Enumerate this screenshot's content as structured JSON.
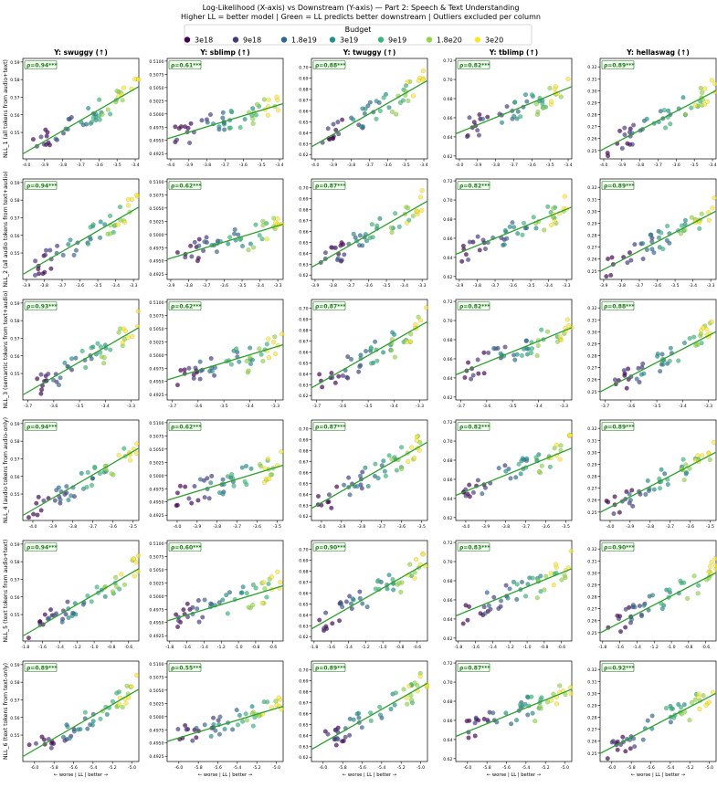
{
  "figure": {
    "title_line1": "Log-Likelihood (X-axis) vs Downstream (Y-axis) — Part 2: Speech & Text Understanding",
    "title_line2": "Higher LL = better model | Green = LL predicts better downstream | Outliers excluded per column",
    "legend_title": "Budget",
    "legend": [
      {
        "label": "3e18",
        "color": "#440154"
      },
      {
        "label": "9e18",
        "color": "#443983"
      },
      {
        "label": "1.8e19",
        "color": "#31688e"
      },
      {
        "label": "3e19",
        "color": "#21918c"
      },
      {
        "label": "9e19",
        "color": "#35b779"
      },
      {
        "label": "1.8e20",
        "color": "#90d743"
      },
      {
        "label": "3e20",
        "color": "#fde725"
      }
    ],
    "x_footer": "← worse | LL | better →",
    "fit_color": "#2ca02c",
    "rho_text_color": "#1a7a1a"
  },
  "columns": [
    {
      "title": "Y: swuggy (↑)",
      "ylim": [
        0.535,
        0.592
      ],
      "yticks": [
        "0.55",
        "0.56",
        "0.57",
        "0.58",
        "0.59"
      ]
    },
    {
      "title": "Y: sblimp (↑)",
      "ylim": [
        0.4915,
        0.5105
      ],
      "yticks": [
        "0.4925",
        "0.4950",
        "0.4975",
        "0.5000",
        "0.5025",
        "0.5050",
        "0.5075",
        "0.5100"
      ]
    },
    {
      "title": "Y: twuggy (↑)",
      "ylim": [
        0.616,
        0.708
      ],
      "yticks": [
        "0.62",
        "0.63",
        "0.64",
        "0.65",
        "0.66",
        "0.67",
        "0.68",
        "0.69",
        "0.70"
      ]
    },
    {
      "title": "Y: tblimp (↑)",
      "ylim": [
        0.617,
        0.722
      ],
      "yticks": [
        "0.62",
        "0.64",
        "0.66",
        "0.68",
        "0.70",
        "0.72"
      ]
    },
    {
      "title": "Y: hellaswag (↑)",
      "ylim": [
        0.243,
        0.327
      ],
      "yticks": [
        "0.25",
        "0.26",
        "0.27",
        "0.28",
        "0.29",
        "0.30",
        "0.31",
        "0.32"
      ]
    }
  ],
  "rows": [
    {
      "ylabel": "NLL_1 (all tokens from audio+text)",
      "xlim": [
        -4.02,
        -3.38
      ],
      "xticks": [
        "-4.0",
        "-3.9",
        "-3.8",
        "-3.7",
        "-3.6",
        "-3.5",
        "-3.4"
      ],
      "rho": [
        "ρ=0.94***",
        "ρ=0.61***",
        "ρ=0.88***",
        "ρ=0.82***",
        "ρ=0.89***"
      ]
    },
    {
      "ylabel": "NLL_2 (all audio tokens from text+audio)",
      "xlim": [
        -3.92,
        -3.27
      ],
      "xticks": [
        "-3.9",
        "-3.8",
        "-3.7",
        "-3.6",
        "-3.5",
        "-3.4",
        "-3.3"
      ],
      "rho": [
        "ρ=0.94***",
        "ρ=0.62***",
        "ρ=0.87***",
        "ρ=0.82***",
        "ρ=0.89***"
      ]
    },
    {
      "ylabel": "NLL_3 (semantic tokens from text+audio)",
      "xlim": [
        -3.72,
        -3.27
      ],
      "xticks": [
        "-3.7",
        "-3.6",
        "-3.5",
        "-3.4",
        "-3.3"
      ],
      "rho": [
        "ρ=0.93***",
        "ρ=0.62***",
        "ρ=0.87***",
        "ρ=0.82***",
        "ρ=0.88***"
      ]
    },
    {
      "ylabel": "NLL_4 (audio tokens from audio-only)",
      "xlim": [
        -4.05,
        -3.47
      ],
      "xticks": [
        "-4.0",
        "-3.9",
        "-3.8",
        "-3.7",
        "-3.6",
        "-3.5"
      ],
      "rho": [
        "ρ=0.94***",
        "ρ=0.62***",
        "ρ=0.87***",
        "ρ=0.82***",
        "ρ=0.89***"
      ]
    },
    {
      "ylabel": "NLL_5 (text tokens from audio+text)",
      "xlim": [
        -1.83,
        -0.48
      ],
      "xticks": [
        "-1.8",
        "-1.6",
        "-1.4",
        "-1.2",
        "-1.0",
        "-0.8",
        "-0.6"
      ],
      "rho": [
        "ρ=0.94***",
        "ρ=0.60***",
        "ρ=0.90***",
        "ρ=0.83***",
        "ρ=0.90***"
      ]
    },
    {
      "ylabel": "NLL_6 (text tokens from text-only)",
      "xlim": [
        -6.12,
        -4.93
      ],
      "xticks": [
        "-6.0",
        "-5.8",
        "-5.6",
        "-5.4",
        "-5.2",
        "-5.0"
      ],
      "rho": [
        "ρ=0.89***",
        "ρ=0.55***",
        "ρ=0.89***",
        "ρ=0.87***",
        "ρ=0.92***"
      ]
    }
  ],
  "chart_data": {
    "type": "scatter",
    "note_grid": "6 rows (NLL_1..NLL_6) x 5 columns (swuggy, sblimp, twuggy, tblimp, hellaswag)",
    "grid": false,
    "legend_placement": "top-center",
    "series_by_budget": [
      "3e18",
      "9e18",
      "1.8e19",
      "3e19",
      "9e19",
      "1.8e20",
      "3e20"
    ],
    "budget_x_frac_ranges": [
      [
        0.05,
        0.28
      ],
      [
        0.08,
        0.45
      ],
      [
        0.22,
        0.62
      ],
      [
        0.35,
        0.75
      ],
      [
        0.5,
        0.88
      ],
      [
        0.68,
        0.95
      ],
      [
        0.82,
        1.0
      ]
    ],
    "points_per_budget": 7,
    "columns_ylim": [
      [
        0.535,
        0.592
      ],
      [
        0.4915,
        0.5105
      ],
      [
        0.616,
        0.708
      ],
      [
        0.617,
        0.722
      ],
      [
        0.243,
        0.327
      ]
    ],
    "fit_lines_yfrac": [
      [
        0.05,
        0.72
      ],
      [
        0.2,
        0.55
      ],
      [
        0.12,
        0.78
      ],
      [
        0.25,
        0.72
      ],
      [
        0.08,
        0.68
      ]
    ]
  }
}
